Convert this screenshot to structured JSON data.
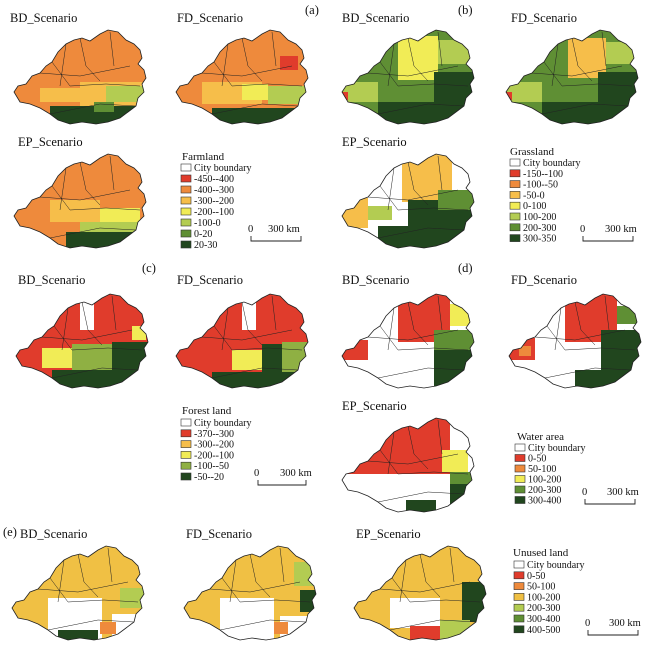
{
  "panel_labels": [
    "(a)",
    "(b)",
    "(c)",
    "(d)",
    "(e)"
  ],
  "scenarios": {
    "bd": "BD_Scenario",
    "fd": "FD_Scenario",
    "ep": "EP_Scenario"
  },
  "scale_bar": {
    "start": "0",
    "end": "300 km"
  },
  "panels": [
    {
      "id": "a",
      "legend_title": "Farmland",
      "legend_items": [
        {
          "label": "City boundary",
          "color": "#ffffff"
        },
        {
          "label": "-450--400",
          "color": "#e03c2c"
        },
        {
          "label": "-400--300",
          "color": "#ee8a3c"
        },
        {
          "label": "-300--200",
          "color": "#f6be4a"
        },
        {
          "label": "-200--100",
          "color": "#f1ec56"
        },
        {
          "label": "-100-0",
          "color": "#b3cc52"
        },
        {
          "label": "0-20",
          "color": "#5f8f34"
        },
        {
          "label": "20-30",
          "color": "#21461e"
        }
      ]
    },
    {
      "id": "b",
      "legend_title": "Grassland",
      "legend_items": [
        {
          "label": "City boundary",
          "color": "#ffffff"
        },
        {
          "label": "-150--100",
          "color": "#e03c2c"
        },
        {
          "label": "-100--50",
          "color": "#ee8a3c"
        },
        {
          "label": "-50-0",
          "color": "#f6be4a"
        },
        {
          "label": "0-100",
          "color": "#f1ec56"
        },
        {
          "label": "100-200",
          "color": "#b3cc52"
        },
        {
          "label": "200-300",
          "color": "#5f8f34"
        },
        {
          "label": "300-350",
          "color": "#21461e"
        }
      ]
    },
    {
      "id": "c",
      "legend_title": "Forest land",
      "legend_items": [
        {
          "label": "City boundary",
          "color": "#ffffff"
        },
        {
          "label": "-370--300",
          "color": "#e03c2c"
        },
        {
          "label": "-300--200",
          "color": "#f6be4a"
        },
        {
          "label": "-200--100",
          "color": "#f1ec56"
        },
        {
          "label": "-100--50",
          "color": "#8fb043"
        },
        {
          "label": "-50--20",
          "color": "#21461e"
        }
      ]
    },
    {
      "id": "d",
      "legend_title": "Water area",
      "legend_items": [
        {
          "label": "City boundary",
          "color": "#ffffff"
        },
        {
          "label": "0-50",
          "color": "#e03c2c"
        },
        {
          "label": "50-100",
          "color": "#ee8a3c"
        },
        {
          "label": "100-200",
          "color": "#f1ec56"
        },
        {
          "label": "200-300",
          "color": "#5f8f34"
        },
        {
          "label": "300-400",
          "color": "#21461e"
        }
      ]
    },
    {
      "id": "e",
      "legend_title": "Unused land",
      "legend_items": [
        {
          "label": "City boundary",
          "color": "#ffffff"
        },
        {
          "label": "0-50",
          "color": "#e03c2c"
        },
        {
          "label": "50-100",
          "color": "#ee8a3c"
        },
        {
          "label": "100-200",
          "color": "#f0c044"
        },
        {
          "label": "200-300",
          "color": "#b3cc52"
        },
        {
          "label": "300-400",
          "color": "#5f8f34"
        },
        {
          "label": "400-500",
          "color": "#21461e"
        }
      ]
    }
  ]
}
